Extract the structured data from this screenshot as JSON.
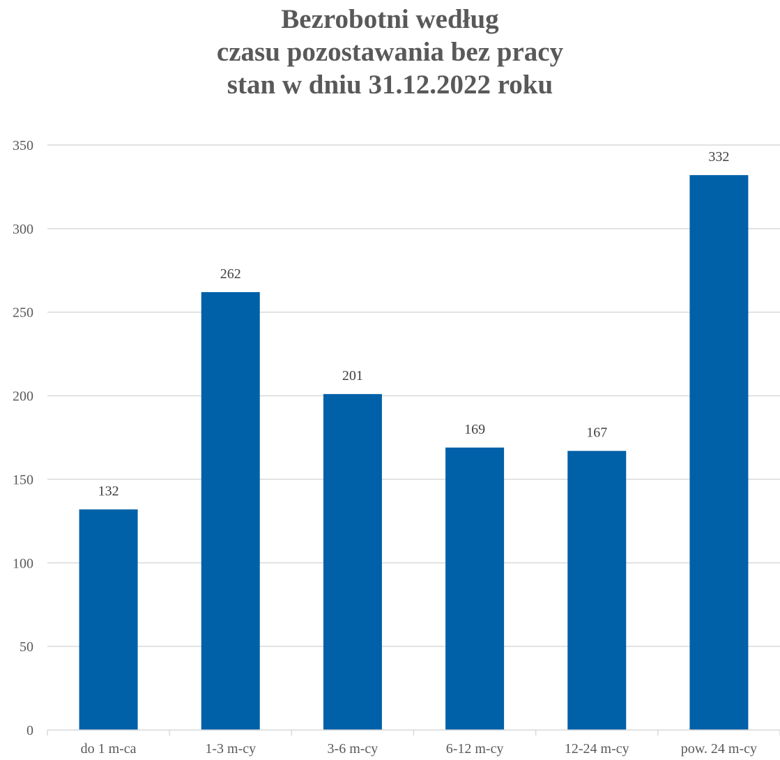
{
  "chart_data": {
    "type": "bar",
    "title_lines": [
      "Bezrobotni według",
      "czasu pozostawania bez pracy",
      "stan w dniu 31.12.2022 roku"
    ],
    "categories": [
      "do 1 m-ca",
      "1-3 m-cy",
      "3-6 m-cy",
      "6-12 m-cy",
      "12-24 m-cy",
      "pow. 24 m-cy"
    ],
    "values": [
      132,
      262,
      201,
      169,
      167,
      332
    ],
    "ylim": [
      0,
      350
    ],
    "yticks": [
      0,
      50,
      100,
      150,
      200,
      250,
      300,
      350
    ],
    "grid": true,
    "legend": "none",
    "data_labels": true,
    "bar_color": "#0060A8",
    "grid_color": "#D9D9D9"
  }
}
